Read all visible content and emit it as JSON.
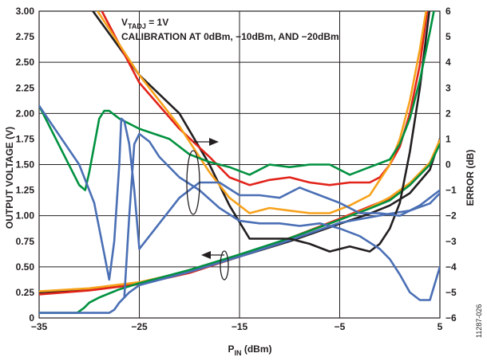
{
  "chart_data": {
    "type": "line",
    "title": "",
    "xlabel": "P",
    "xlabel_sub": "IN",
    "xlabel_unit": " (dBm)",
    "ylabel": "OUTPUT VOLTAGE (V)",
    "y2label": "ERROR (dB)",
    "xlim": [
      -35,
      5
    ],
    "ylim": [
      0,
      3
    ],
    "y2lim": [
      -6,
      6
    ],
    "grid": true,
    "x_ticks": [
      -35,
      -25,
      -15,
      -5,
      5
    ],
    "x_tick_labels": [
      "−35",
      "−25",
      "−15",
      "−5",
      "5"
    ],
    "y_ticks": [
      0,
      0.25,
      0.5,
      0.75,
      1.0,
      1.25,
      1.5,
      1.75,
      2.0,
      2.25,
      2.5,
      2.75,
      3.0
    ],
    "y_tick_labels": [
      "0",
      "0.25",
      "0.50",
      "0.75",
      "1.00",
      "1.25",
      "1.50",
      "1.75",
      "2.00",
      "2.25",
      "2.50",
      "2.75",
      "3.00"
    ],
    "y2_ticks": [
      -6,
      -5,
      -4,
      -3,
      -2,
      -1,
      0,
      1,
      2,
      3,
      4,
      5,
      6
    ],
    "y2_tick_labels": [
      "−6",
      "−5",
      "−4",
      "−3",
      "−2",
      "−1",
      "0",
      "1",
      "2",
      "3",
      "4",
      "5",
      "6"
    ],
    "annotations": {
      "line1_main": "V",
      "line1_sub": "TADJ",
      "line1_rest": " = 1V",
      "line2": "CALIBRATION AT 0dBm, −10dBm, AND −20dBm"
    },
    "figure_id": "11287-026",
    "series": [
      {
        "color": "#231f20",
        "axis": "left",
        "x": [
          -35,
          -30,
          -25,
          -20,
          -15,
          -10,
          -5,
          -2,
          0,
          2,
          4,
          5
        ],
        "y": [
          0.25,
          0.28,
          0.34,
          0.45,
          0.6,
          0.75,
          0.92,
          1.02,
          1.1,
          1.22,
          1.45,
          1.75
        ]
      },
      {
        "color": "#e2231a",
        "axis": "left",
        "x": [
          -35,
          -30,
          -25,
          -20,
          -15,
          -10,
          -5,
          -2,
          0,
          2,
          4,
          5
        ],
        "y": [
          0.23,
          0.27,
          0.33,
          0.44,
          0.6,
          0.78,
          0.97,
          1.09,
          1.17,
          1.3,
          1.5,
          1.72
        ]
      },
      {
        "color": "#f7a21b",
        "axis": "left",
        "x": [
          -35,
          -30,
          -25,
          -20,
          -15,
          -10,
          -5,
          -2,
          0,
          2,
          4,
          5
        ],
        "y": [
          0.26,
          0.29,
          0.35,
          0.46,
          0.61,
          0.78,
          0.96,
          1.08,
          1.18,
          1.32,
          1.52,
          1.74
        ]
      },
      {
        "color": "#00913f",
        "axis": "left",
        "x": [
          -35,
          -32,
          -31.2,
          -30.5,
          -30,
          -29,
          -27,
          -25,
          -20,
          -15,
          -10,
          -5,
          -2,
          0,
          2,
          4,
          5
        ],
        "y": [
          0.05,
          0.05,
          0.05,
          0.1,
          0.15,
          0.2,
          0.28,
          0.34,
          0.47,
          0.62,
          0.78,
          0.96,
          1.07,
          1.15,
          1.3,
          1.5,
          1.7
        ]
      },
      {
        "color": "#4a6fb5",
        "axis": "left",
        "x": [
          -35,
          -28,
          -27.5,
          -27,
          -26.5,
          -26,
          -25,
          -20,
          -15,
          -10,
          -5,
          0,
          2,
          4,
          5
        ],
        "y": [
          0.05,
          0.05,
          0.08,
          0.15,
          0.2,
          0.25,
          0.32,
          0.45,
          0.6,
          0.76,
          0.93,
          1.02,
          1.05,
          1.12,
          1.22
        ]
      },
      {
        "color": "#231f20",
        "axis": "right",
        "x": [
          -30,
          -25,
          -21,
          -18,
          -16,
          -14,
          -12,
          -10,
          -8,
          -6,
          -4,
          -2,
          -1,
          0,
          1,
          2,
          3,
          4
        ],
        "y": [
          6.2,
          3.5,
          2.0,
          0.0,
          -1.6,
          -2.9,
          -2.9,
          -2.9,
          -3.1,
          -3.4,
          -3.2,
          -3.4,
          -3.1,
          -2.5,
          -1.5,
          0.5,
          3.0,
          6.2
        ]
      },
      {
        "color": "#e2231a",
        "axis": "right",
        "x": [
          -29,
          -25,
          -21,
          -18,
          -16,
          -14,
          -12,
          -10,
          -8,
          -6,
          -4,
          -2,
          -1,
          0,
          1,
          2,
          3,
          3.8
        ],
        "y": [
          6.2,
          3.2,
          1.4,
          0.3,
          -0.5,
          -0.8,
          -0.6,
          -0.5,
          -0.7,
          -0.8,
          -0.7,
          -0.7,
          -0.5,
          0.0,
          0.7,
          2.0,
          3.9,
          6.2
        ]
      },
      {
        "color": "#f7a21b",
        "axis": "right",
        "x": [
          -29.5,
          -25,
          -21,
          -18,
          -16,
          -14,
          -12,
          -10,
          -8,
          -6,
          -4,
          -2,
          -1,
          0,
          1,
          2,
          3,
          3.7
        ],
        "y": [
          6.2,
          3.5,
          1.5,
          -0.3,
          -1.3,
          -1.9,
          -1.7,
          -1.8,
          -1.9,
          -1.9,
          -1.6,
          -1.2,
          -0.6,
          0.0,
          1.0,
          2.5,
          4.5,
          6.2
        ]
      },
      {
        "color": "#00913f",
        "axis": "right",
        "x": [
          -35,
          -31,
          -30.4,
          -30,
          -29,
          -28.5,
          -28,
          -27,
          -25,
          -22,
          -20,
          -18,
          -16,
          -14,
          -12,
          -10,
          -8,
          -6,
          -4,
          -2,
          0,
          1,
          2,
          3,
          4,
          4.5
        ],
        "y": [
          2.3,
          -0.8,
          -1.0,
          -0.3,
          1.8,
          2.1,
          2.1,
          1.8,
          1.4,
          1.0,
          0.4,
          0.1,
          -0.1,
          -0.4,
          0.0,
          -0.1,
          0.0,
          0.0,
          -0.4,
          -0.1,
          0.2,
          0.8,
          1.8,
          3.3,
          5.2,
          6.2
        ]
      },
      {
        "color": "#4a6fb5",
        "axis": "right",
        "x": [
          -35,
          -31,
          -29.5,
          -28.5,
          -28,
          -27.5,
          -27,
          -26.8,
          -26.5,
          -26,
          -25.5,
          -25,
          -23,
          -21,
          -19,
          -17,
          -15,
          -13,
          -11,
          -9,
          -7,
          -5,
          -3,
          -1,
          1,
          3,
          4,
          5
        ],
        "y": [
          2.3,
          0.0,
          -1.5,
          -3.5,
          -4.5,
          -3.0,
          0.0,
          1.8,
          1.7,
          0.8,
          -1.0,
          -3.3,
          -2.3,
          -1.3,
          -0.7,
          -0.7,
          -1.2,
          -1.2,
          -1.3,
          -0.9,
          -1.2,
          -1.5,
          -1.9,
          -1.9,
          -2.0,
          -1.6,
          -1.3,
          -1.0
        ]
      },
      {
        "color": "#4a6fb5",
        "axis": "right",
        "x": [
          -26.5,
          -26,
          -25.5,
          -25,
          -24,
          -23,
          -21,
          -19,
          -17,
          -15,
          -13,
          -11,
          -9,
          -7,
          -5,
          -3,
          -1,
          0,
          1,
          2,
          3,
          4,
          5
        ],
        "y": [
          -5.2,
          -2.0,
          0.8,
          1.2,
          0.9,
          0.3,
          -0.5,
          -1.0,
          -1.7,
          -2.2,
          -2.3,
          -2.3,
          -2.4,
          -2.3,
          -2.5,
          -2.8,
          -3.3,
          -3.7,
          -4.3,
          -5.0,
          -5.3,
          -5.3,
          -4.0
        ]
      }
    ]
  }
}
